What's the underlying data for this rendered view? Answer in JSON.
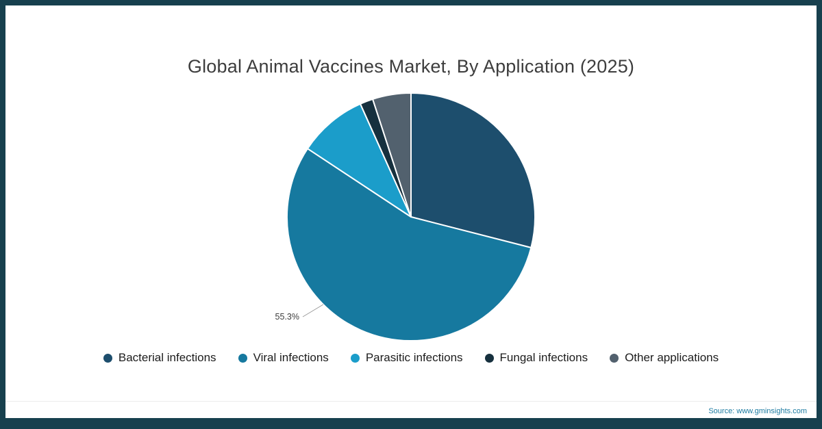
{
  "source_text": "Source: www.gminsights.com",
  "chart_data": {
    "type": "pie",
    "title": "Global Animal Vaccines Market, By Application (2025)",
    "labels": [
      "Bacterial infections",
      "Viral infections",
      "Parasitic infections",
      "Fungal infections",
      "Other applications"
    ],
    "values": [
      29.0,
      55.3,
      9.0,
      1.7,
      5.0
    ],
    "colors": [
      "#1d4e6d",
      "#16799f",
      "#1b9dca",
      "#16303e",
      "#52616e"
    ],
    "start_angle_deg": 0,
    "direction": "clockwise",
    "legend_position": "bottom",
    "callout": {
      "text": "55.3%",
      "slice": "Viral infections",
      "angle_deg": 225
    }
  }
}
